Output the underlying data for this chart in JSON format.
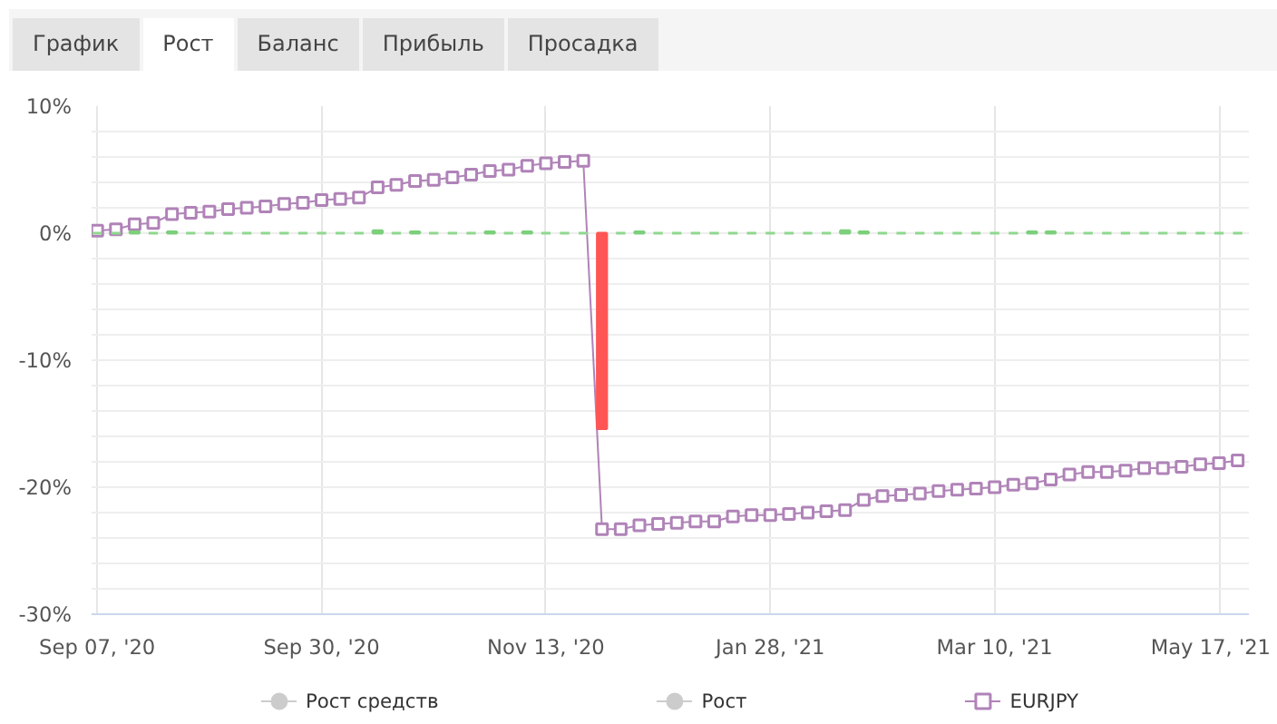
{
  "chart_data": {
    "type": "line",
    "annotations": [
      "График",
      "Рост",
      "Баланс",
      "Прибыль",
      "Просадка"
    ],
    "categories": [
      "Sep 07, '20",
      null,
      null,
      null,
      null,
      null,
      null,
      null,
      null,
      null,
      null,
      null,
      "Sep 30, '20",
      null,
      null,
      null,
      null,
      null,
      null,
      null,
      null,
      null,
      null,
      null,
      "Nov 13, '20",
      null,
      null,
      null,
      null,
      null,
      null,
      null,
      null,
      null,
      null,
      null,
      "Jan 28, '21",
      null,
      null,
      null,
      null,
      null,
      null,
      null,
      null,
      null,
      null,
      null,
      "Mar 10, '21",
      null,
      null,
      null,
      null,
      null,
      null,
      null,
      null,
      null,
      null,
      null,
      "May 17, '21",
      null
    ],
    "ylim": [
      -30,
      10
    ],
    "yticks": [
      {
        "value": -30,
        "label": "-30%"
      },
      {
        "value": -28,
        "label": null
      },
      {
        "value": -26,
        "label": null
      },
      {
        "value": -24,
        "label": null
      },
      {
        "value": -22,
        "label": null
      },
      {
        "value": -20,
        "label": "-20%"
      },
      {
        "value": -18,
        "label": null
      },
      {
        "value": -16,
        "label": null
      },
      {
        "value": -14,
        "label": null
      },
      {
        "value": -12,
        "label": null
      },
      {
        "value": -10,
        "label": "-10%"
      },
      {
        "value": -8,
        "label": null
      },
      {
        "value": -6,
        "label": null
      },
      {
        "value": -4,
        "label": null
      },
      {
        "value": -2,
        "label": null
      },
      {
        "value": 0,
        "label": "0%"
      },
      {
        "value": 2,
        "label": null
      },
      {
        "value": 4,
        "label": null
      },
      {
        "value": 6,
        "label": null
      },
      {
        "value": 8,
        "label": null
      },
      {
        "value": 10,
        "label": "10%"
      }
    ],
    "grid": true,
    "legend": "bottom",
    "series": [
      {
        "name": "Рост средств",
        "marker": "circle",
        "color": "#cccccc",
        "values": [
          null,
          null,
          null,
          null,
          null,
          null,
          null,
          null,
          null,
          null,
          null,
          null,
          null,
          null,
          null,
          null,
          null,
          null,
          null,
          null,
          null,
          null,
          null,
          null,
          null,
          null,
          null,
          null,
          null,
          null,
          null,
          null,
          null,
          null,
          null,
          null,
          null,
          null,
          null,
          null,
          null,
          null,
          null,
          null,
          null,
          null,
          null,
          null,
          null,
          null,
          null,
          null,
          null,
          null,
          null,
          null,
          null,
          null,
          null,
          null,
          null,
          null
        ]
      },
      {
        "name": "Рост",
        "marker": "circle",
        "color": "#cccccc",
        "values": [
          null,
          null,
          null,
          null,
          null,
          null,
          null,
          null,
          null,
          null,
          null,
          null,
          null,
          null,
          null,
          null,
          null,
          null,
          null,
          null,
          null,
          null,
          null,
          null,
          null,
          null,
          null,
          null,
          null,
          null,
          null,
          null,
          null,
          null,
          null,
          null,
          null,
          null,
          null,
          null,
          null,
          null,
          null,
          null,
          null,
          null,
          null,
          null,
          null,
          null,
          null,
          null,
          null,
          null,
          null,
          null,
          null,
          null,
          null,
          null,
          null,
          null
        ]
      },
      {
        "name": "EURJPY",
        "marker": "square",
        "color": "#b083b8",
        "values": [
          0.2,
          0.3,
          0.7,
          0.8,
          1.5,
          1.6,
          1.7,
          1.9,
          2.0,
          2.1,
          2.3,
          2.4,
          2.6,
          2.7,
          2.8,
          3.6,
          3.8,
          4.1,
          4.2,
          4.4,
          4.6,
          4.9,
          5.0,
          5.3,
          5.5,
          5.6,
          5.7,
          -23.3,
          -23.3,
          -23.0,
          -22.9,
          -22.8,
          -22.7,
          -22.7,
          -22.3,
          -22.2,
          -22.2,
          -22.1,
          -22.0,
          -21.9,
          -21.8,
          -21.0,
          -20.7,
          -20.6,
          -20.5,
          -20.3,
          -20.2,
          -20.1,
          -20.0,
          -19.8,
          -19.7,
          -19.4,
          -19.0,
          -18.8,
          -18.8,
          -18.7,
          -18.5,
          -18.5,
          -18.4,
          -18.2,
          -18.1,
          -17.9
        ]
      },
      {
        "type": "bar",
        "colors": [
          "#8fd88f",
          "#8fd88f",
          "#7ccf7c",
          "#8fd88f",
          "#7ccf7c",
          "#8fd88f",
          "#8fd88f",
          "#8fd88f",
          "#8fd88f",
          "#8fd88f",
          "#8fd88f",
          "#8fd88f",
          "#8fd88f",
          "#8fd88f",
          "#8fd88f",
          "#7ccf7c",
          "#8fd88f",
          "#7ccf7c",
          "#8fd88f",
          "#8fd88f",
          "#8fd88f",
          "#7ccf7c",
          "#8fd88f",
          "#7ccf7c",
          "#8fd88f",
          "#8fd88f",
          "#8fd88f",
          "#ff5555",
          "#8fd88f",
          "#7ccf7c",
          "#8fd88f",
          "#8fd88f",
          "#8fd88f",
          "#8fd88f",
          "#8fd88f",
          "#8fd88f",
          "#8fd88f",
          "#8fd88f",
          "#8fd88f",
          "#8fd88f",
          "#7ccf7c",
          "#7ccf7c",
          "#8fd88f",
          "#8fd88f",
          "#8fd88f",
          "#8fd88f",
          "#8fd88f",
          "#8fd88f",
          "#8fd88f",
          "#8fd88f",
          "#7ccf7c",
          "#7ccf7c",
          "#8fd88f",
          "#8fd88f",
          "#8fd88f",
          "#8fd88f",
          "#8fd88f",
          "#8fd88f",
          "#8fd88f",
          "#8fd88f",
          "#8fd88f",
          "#8fd88f"
        ],
        "values": [
          0,
          0,
          0.1,
          0,
          0.1,
          0,
          0,
          0,
          0,
          0,
          0,
          0,
          0,
          0,
          0,
          0.2,
          0,
          0.1,
          0,
          0,
          0,
          0.1,
          0,
          0.1,
          0,
          0,
          0,
          -15.4,
          0,
          0.1,
          0,
          0,
          0,
          0,
          0,
          0,
          0,
          0,
          0,
          0,
          0.2,
          0.1,
          0,
          0,
          0,
          0,
          0,
          0,
          0,
          0,
          0.1,
          0.1,
          0,
          0,
          0,
          0,
          0,
          0,
          0,
          0,
          0,
          0
        ]
      }
    ]
  }
}
